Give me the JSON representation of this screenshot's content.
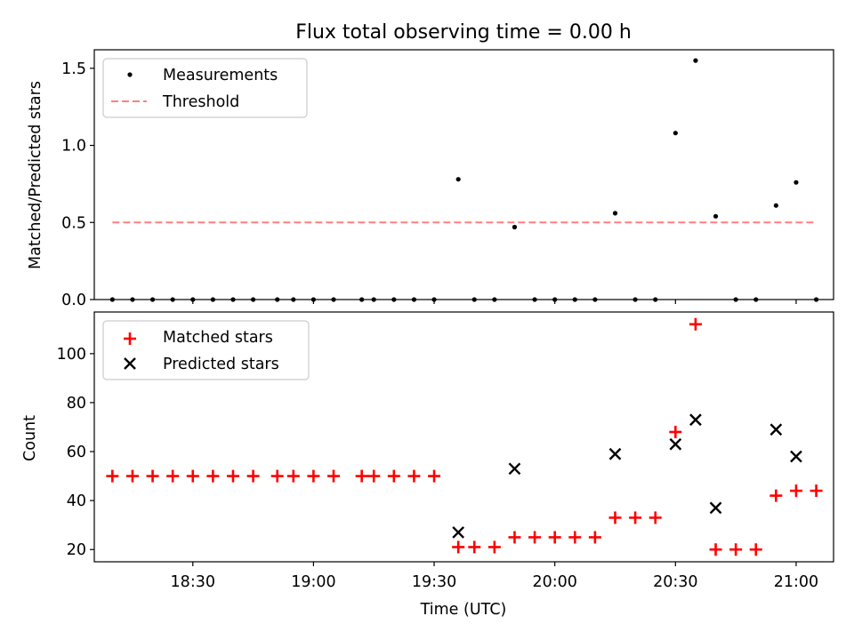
{
  "title": "Flux total observing time = 0.00 h",
  "xlabel": "Time (UTC)",
  "colors": {
    "measurements": "#000000",
    "threshold": "#ff7f7f",
    "matched": "#ff0000",
    "predicted": "#000000"
  },
  "chart_data": [
    {
      "type": "scatter",
      "ylabel": "Matched/Predicted stars",
      "ylim": [
        0,
        1.62
      ],
      "yticks": [
        0.0,
        0.5,
        1.0,
        1.5
      ],
      "ytick_labels": [
        "0.0",
        "0.5",
        "1.0",
        "1.5"
      ],
      "legend": {
        "position": "upper-left",
        "entries": [
          "Measurements",
          "Threshold"
        ]
      },
      "series": [
        {
          "name": "Measurements",
          "marker": "dot",
          "x": [
            "18:10",
            "18:15",
            "18:20",
            "18:25",
            "18:30",
            "18:35",
            "18:40",
            "18:45",
            "18:51",
            "18:55",
            "19:00",
            "19:05",
            "19:12",
            "19:15",
            "19:20",
            "19:25",
            "19:30",
            "19:36",
            "19:40",
            "19:45",
            "19:50",
            "19:55",
            "20:00",
            "20:05",
            "20:10",
            "20:15",
            "20:20",
            "20:25",
            "20:30",
            "20:35",
            "20:40",
            "20:45",
            "20:50",
            "20:55",
            "21:00",
            "21:05"
          ],
          "y": [
            0,
            0,
            0,
            0,
            0,
            0,
            0,
            0,
            0,
            0,
            0,
            0,
            0,
            0,
            0,
            0,
            0,
            0.78,
            0,
            0,
            0.47,
            0,
            0,
            0,
            0,
            0.56,
            0,
            0,
            1.08,
            1.55,
            0.54,
            0,
            0,
            0.61,
            0.76,
            0
          ]
        },
        {
          "name": "Threshold",
          "line": "dashed",
          "x": [
            "18:10",
            "21:05"
          ],
          "y": [
            0.5,
            0.5
          ]
        }
      ]
    },
    {
      "type": "scatter",
      "ylabel": "Count",
      "ylim": [
        15,
        117
      ],
      "yticks": [
        20,
        40,
        60,
        80,
        100
      ],
      "ytick_labels": [
        "20",
        "40",
        "60",
        "80",
        "100"
      ],
      "xticks": [
        "18:30",
        "19:00",
        "19:30",
        "20:00",
        "20:30",
        "21:00"
      ],
      "xtick_labels": [
        "18:30",
        "19:00",
        "19:30",
        "20:00",
        "20:30",
        "21:00"
      ],
      "legend": {
        "position": "upper-left",
        "entries": [
          "Matched stars",
          "Predicted stars"
        ]
      },
      "series": [
        {
          "name": "Matched stars",
          "marker": "plus",
          "x": [
            "18:10",
            "18:15",
            "18:20",
            "18:25",
            "18:30",
            "18:35",
            "18:40",
            "18:45",
            "18:51",
            "18:55",
            "19:00",
            "19:05",
            "19:12",
            "19:15",
            "19:20",
            "19:25",
            "19:30",
            "19:36",
            "19:40",
            "19:45",
            "19:50",
            "19:55",
            "20:00",
            "20:05",
            "20:10",
            "20:15",
            "20:20",
            "20:25",
            "20:30",
            "20:35",
            "20:40",
            "20:45",
            "20:50",
            "20:55",
            "21:00",
            "21:05"
          ],
          "y": [
            50,
            50,
            50,
            50,
            50,
            50,
            50,
            50,
            50,
            50,
            50,
            50,
            50,
            50,
            50,
            50,
            50,
            21,
            21,
            21,
            25,
            25,
            25,
            25,
            25,
            33,
            33,
            33,
            68,
            112,
            20,
            20,
            20,
            42,
            44,
            44
          ]
        },
        {
          "name": "Predicted stars",
          "marker": "x",
          "x": [
            "19:36",
            "19:50",
            "20:15",
            "20:30",
            "20:35",
            "20:40",
            "20:55",
            "21:00"
          ],
          "y": [
            27,
            53,
            59,
            63,
            73,
            37,
            69,
            58
          ]
        }
      ]
    }
  ]
}
